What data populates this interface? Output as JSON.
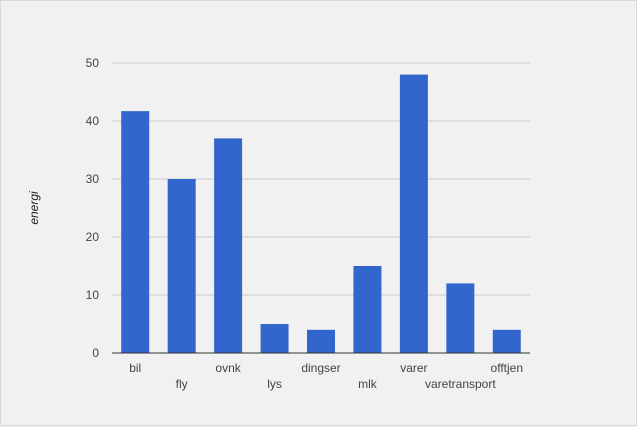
{
  "chart_data": {
    "type": "bar",
    "ylabel": "energi",
    "xlabel": "",
    "categories": [
      "bil",
      "fly",
      "ovnk",
      "lys",
      "dingser",
      "mlk",
      "varer",
      "varetransport",
      "offtjen"
    ],
    "values": [
      41.7,
      30,
      37,
      5,
      4,
      15,
      48,
      12,
      4
    ],
    "ylim": [
      0,
      50
    ],
    "yticks": [
      0,
      10,
      20,
      30,
      40,
      50
    ],
    "grid": true,
    "legend": "none",
    "bar_color": "#3366cc",
    "grid_color": "#cccccc",
    "axis_color": "#333333"
  }
}
